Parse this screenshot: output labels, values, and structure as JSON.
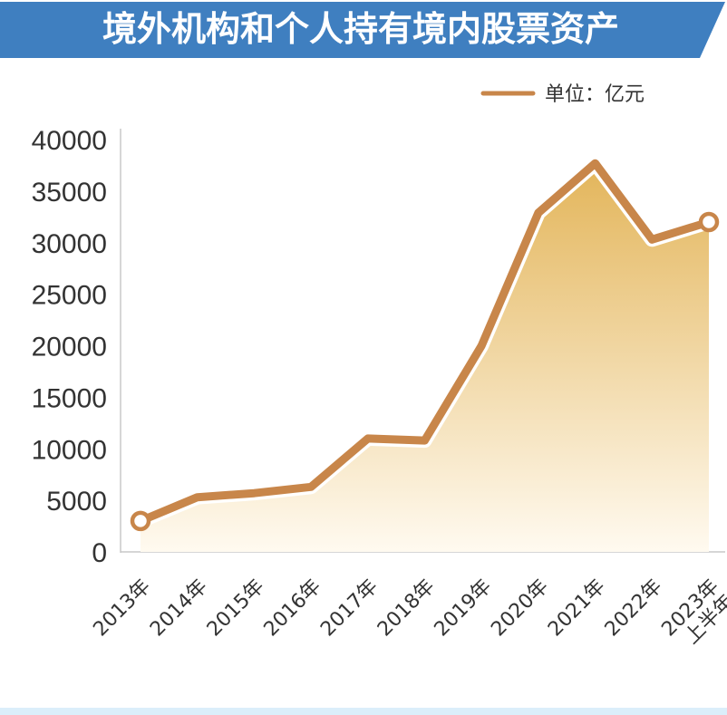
{
  "header": {
    "title": "境外机构和个人持有境内股票资产"
  },
  "legend": {
    "label": "单位：亿元"
  },
  "colors": {
    "banner": "#3f7fc0",
    "line": "#c8864a",
    "fill_top": "#e3b55a",
    "fill_bottom": "#fffaf0",
    "axis": "#c8c8c8",
    "bottom_band": "#dbeefa"
  },
  "chart_data": {
    "type": "area",
    "categories": [
      "2013年",
      "2014年",
      "2015年",
      "2016年",
      "2017年",
      "2018年",
      "2019年",
      "2020年",
      "2021年",
      "2022年",
      [
        "2023年",
        "上半年"
      ]
    ],
    "series": [
      {
        "values": [
          3000,
          5300,
          5700,
          6300,
          11000,
          10800,
          20000,
          32900,
          37700,
          30300,
          32000
        ]
      }
    ],
    "yticks": [
      0,
      5000,
      10000,
      15000,
      20000,
      25000,
      30000,
      35000,
      40000
    ],
    "ylim": [
      0,
      40000
    ],
    "grid": false,
    "legend_position": "top-right"
  }
}
